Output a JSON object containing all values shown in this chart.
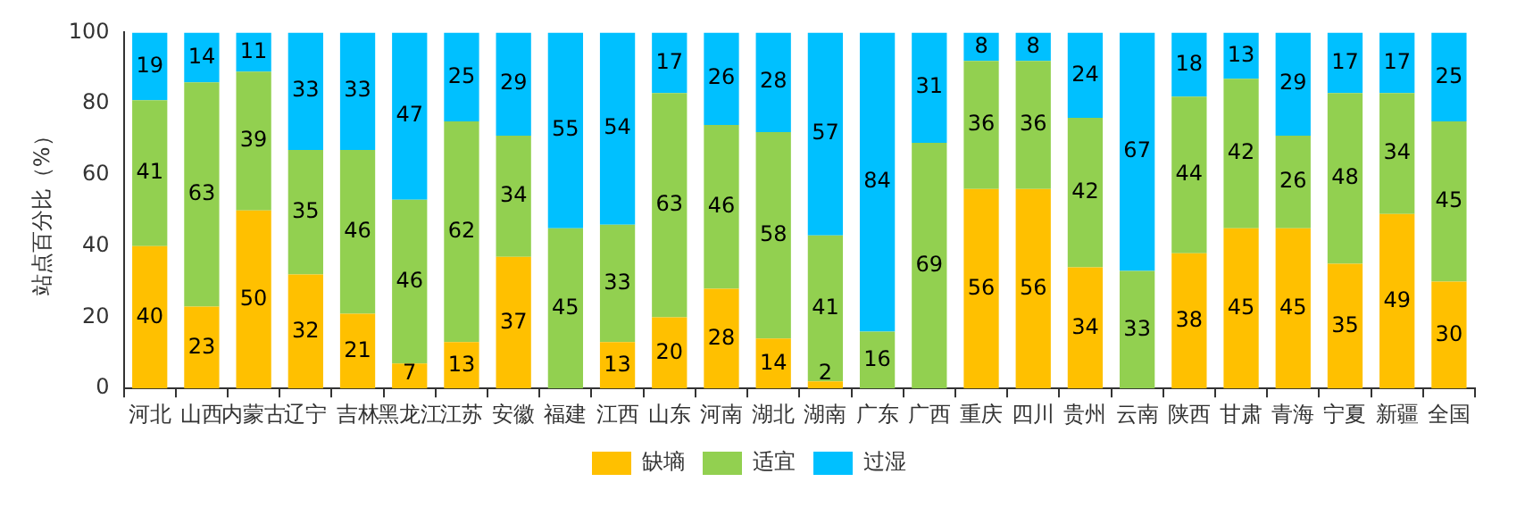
{
  "chart_data": {
    "type": "bar",
    "stacked": true,
    "ylabel": "站点百分比（%）",
    "categories": [
      "河北",
      "山西",
      "内蒙古",
      "辽宁",
      "吉林",
      "黑龙江",
      "江苏",
      "安徽",
      "福建",
      "江西",
      "山东",
      "河南",
      "湖北",
      "湖南",
      "广东",
      "广西",
      "重庆",
      "四川",
      "贵州",
      "云南",
      "陕西",
      "甘肃",
      "青海",
      "宁夏",
      "新疆",
      "全国"
    ],
    "series": [
      {
        "name": "缺墒",
        "color": "#ffc000",
        "values": [
          40,
          23,
          50,
          32,
          21,
          7,
          13,
          37,
          0,
          13,
          20,
          28,
          14,
          2,
          0,
          0,
          56,
          56,
          34,
          0,
          38,
          45,
          45,
          35,
          49,
          30
        ],
        "value_labels": [
          "40",
          "23",
          "50",
          "32",
          "21",
          "7",
          "13",
          "37",
          null,
          "13",
          "20",
          "28",
          "14",
          "2",
          null,
          null,
          "56",
          "56",
          "34",
          null,
          "38",
          "45",
          "45",
          "35",
          "49",
          "30"
        ]
      },
      {
        "name": "适宜",
        "color": "#92d050",
        "values": [
          41,
          63,
          39,
          35,
          46,
          46,
          62,
          34,
          45,
          33,
          63,
          46,
          58,
          41,
          16,
          69,
          36,
          36,
          42,
          33,
          44,
          42,
          26,
          48,
          34,
          45
        ]
      },
      {
        "name": "过湿",
        "color": "#00c0ff",
        "values": [
          19,
          14,
          11,
          33,
          33,
          47,
          25,
          29,
          55,
          54,
          17,
          26,
          28,
          57,
          84,
          31,
          8,
          8,
          24,
          67,
          18,
          13,
          29,
          17,
          17,
          25
        ]
      }
    ],
    "ylim": [
      0,
      100
    ],
    "yticks": [
      0,
      20,
      40,
      60,
      80,
      100
    ],
    "grid": false,
    "legend": "bottom",
    "data_labels": true
  }
}
